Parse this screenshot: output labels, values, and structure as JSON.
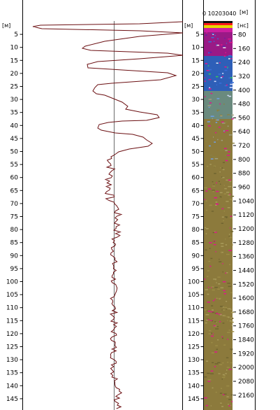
{
  "left_panel": {
    "unit_label": "[м]",
    "depth_ticks": [
      "5",
      "10",
      "15",
      "20",
      "25",
      "30",
      "35",
      "40",
      "45",
      "50",
      "55",
      "60",
      "65",
      "70",
      "75",
      "80",
      "85",
      "90",
      "95",
      "100",
      "105",
      "110",
      "115",
      "120",
      "125",
      "130",
      "135",
      "140",
      "145"
    ],
    "curve_color": "#6b0f12"
  },
  "right_panel": {
    "unit_label": "[м]",
    "depth_ticks": [
      "5",
      "10",
      "15",
      "20",
      "25",
      "30",
      "35",
      "40",
      "45",
      "50",
      "55",
      "60",
      "65",
      "70",
      "75",
      "80",
      "85",
      "90",
      "95",
      "100",
      "105",
      "110",
      "115",
      "120",
      "125",
      "130",
      "135",
      "140",
      "145"
    ],
    "top_scale_label": "0 10203040",
    "top_unit_label": "[м]",
    "time_unit_label": "[нс]",
    "time_ticks": [
      "80",
      "160",
      "240",
      "320",
      "400",
      "480",
      "560",
      "640",
      "720",
      "800",
      "880",
      "960",
      "1040",
      "1120",
      "1200",
      "1280",
      "1360",
      "1440",
      "1520",
      "1600",
      "1680",
      "1760",
      "1840",
      "1920",
      "2000",
      "2080",
      "2160"
    ]
  },
  "colors": {
    "radargram_base": "#8c7a3c",
    "accent_magenta": "#e0168c",
    "accent_blue": "#3a6fd8",
    "accent_green": "#35c85a"
  }
}
